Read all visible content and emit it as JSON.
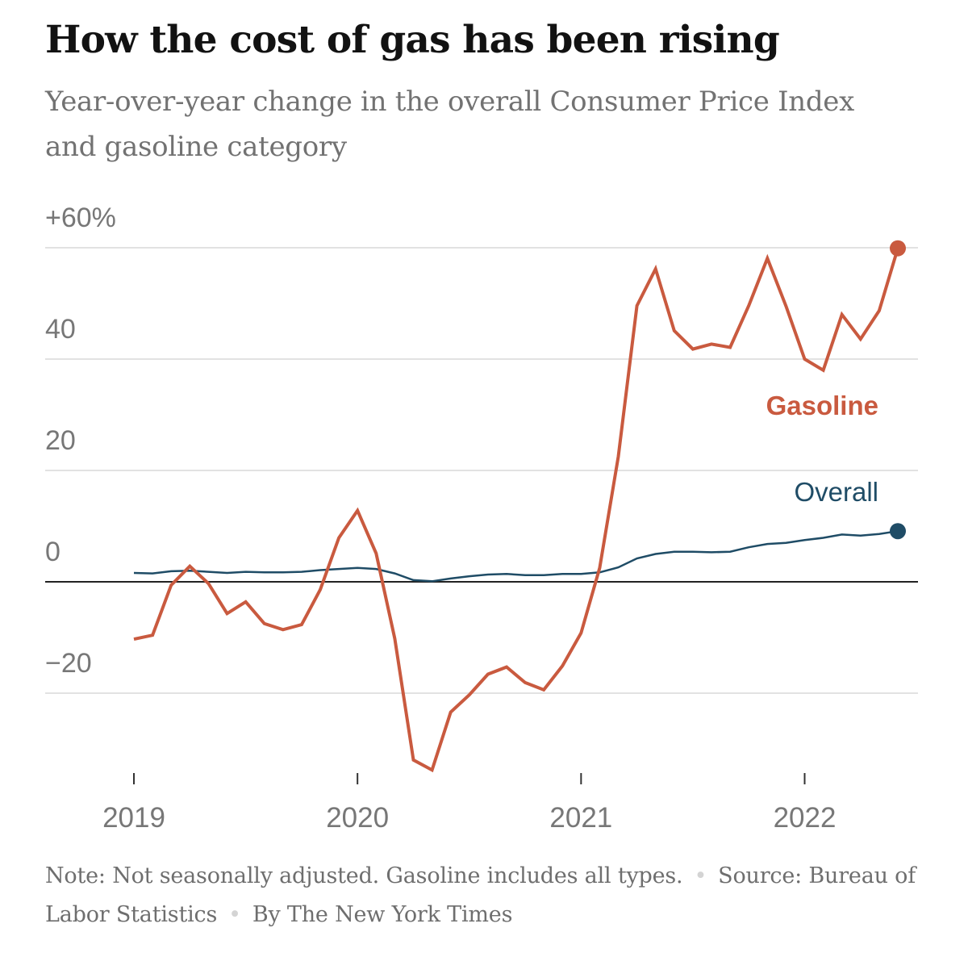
{
  "title": "How the cost of gas has been rising",
  "subtitle": "Year-over-year change in the overall Consumer Price Index and gasoline category",
  "footer": {
    "note": "Note: Not seasonally adjusted. Gasoline includes all types.",
    "source": "Source: Bureau of Labor Statistics",
    "byline": "By The New York Times",
    "separator": "•"
  },
  "colors": {
    "gasoline": "#c95a3f",
    "overall": "#1f4c66",
    "gridline": "#e2e2e2",
    "zeroline": "#222222",
    "tick_label": "#777777"
  },
  "chart_data": {
    "type": "line",
    "title": "How the cost of gas has been rising",
    "subtitle": "Year-over-year change in the overall Consumer Price Index and gasoline category",
    "xlabel": "",
    "ylabel": "",
    "x_tick_labels": [
      "2019",
      "2020",
      "2021",
      "2022"
    ],
    "y_tick_labels": [
      "+60%",
      "40",
      "20",
      "0",
      "−20"
    ],
    "y_ticks": [
      60,
      40,
      20,
      0,
      -20
    ],
    "ylim": [
      -34,
      62
    ],
    "x_start": "2019-01",
    "x_end": "2022-06",
    "grid": true,
    "x": [
      "2019-01",
      "2019-02",
      "2019-03",
      "2019-04",
      "2019-05",
      "2019-06",
      "2019-07",
      "2019-08",
      "2019-09",
      "2019-10",
      "2019-11",
      "2019-12",
      "2020-01",
      "2020-02",
      "2020-03",
      "2020-04",
      "2020-05",
      "2020-06",
      "2020-07",
      "2020-08",
      "2020-09",
      "2020-10",
      "2020-11",
      "2020-12",
      "2021-01",
      "2021-02",
      "2021-03",
      "2021-04",
      "2021-05",
      "2021-06",
      "2021-07",
      "2021-08",
      "2021-09",
      "2021-10",
      "2021-11",
      "2021-12",
      "2022-01",
      "2022-02",
      "2022-03",
      "2022-04",
      "2022-05",
      "2022-06"
    ],
    "series": [
      {
        "name": "Gasoline",
        "color": "#c95a3f",
        "values": [
          -10.3,
          -9.6,
          -0.6,
          2.8,
          -0.3,
          -5.7,
          -3.6,
          -7.5,
          -8.6,
          -7.7,
          -1.4,
          7.9,
          12.8,
          5.1,
          -10.2,
          -32.0,
          -33.8,
          -23.4,
          -20.3,
          -16.6,
          -15.3,
          -18.1,
          -19.4,
          -15.1,
          -9.2,
          2.5,
          22.5,
          49.6,
          56.2,
          45.1,
          41.8,
          42.7,
          42.1,
          49.6,
          58.1,
          49.5,
          40.0,
          38.0,
          48.0,
          43.6,
          48.7,
          59.9
        ]
      },
      {
        "name": "Overall",
        "color": "#1f4c66",
        "values": [
          1.6,
          1.5,
          1.9,
          2.0,
          1.8,
          1.6,
          1.8,
          1.7,
          1.7,
          1.8,
          2.1,
          2.3,
          2.5,
          2.3,
          1.5,
          0.3,
          0.1,
          0.6,
          1.0,
          1.3,
          1.4,
          1.2,
          1.2,
          1.4,
          1.4,
          1.7,
          2.6,
          4.2,
          5.0,
          5.4,
          5.4,
          5.3,
          5.4,
          6.2,
          6.8,
          7.0,
          7.5,
          7.9,
          8.5,
          8.3,
          8.6,
          9.1
        ]
      }
    ]
  }
}
